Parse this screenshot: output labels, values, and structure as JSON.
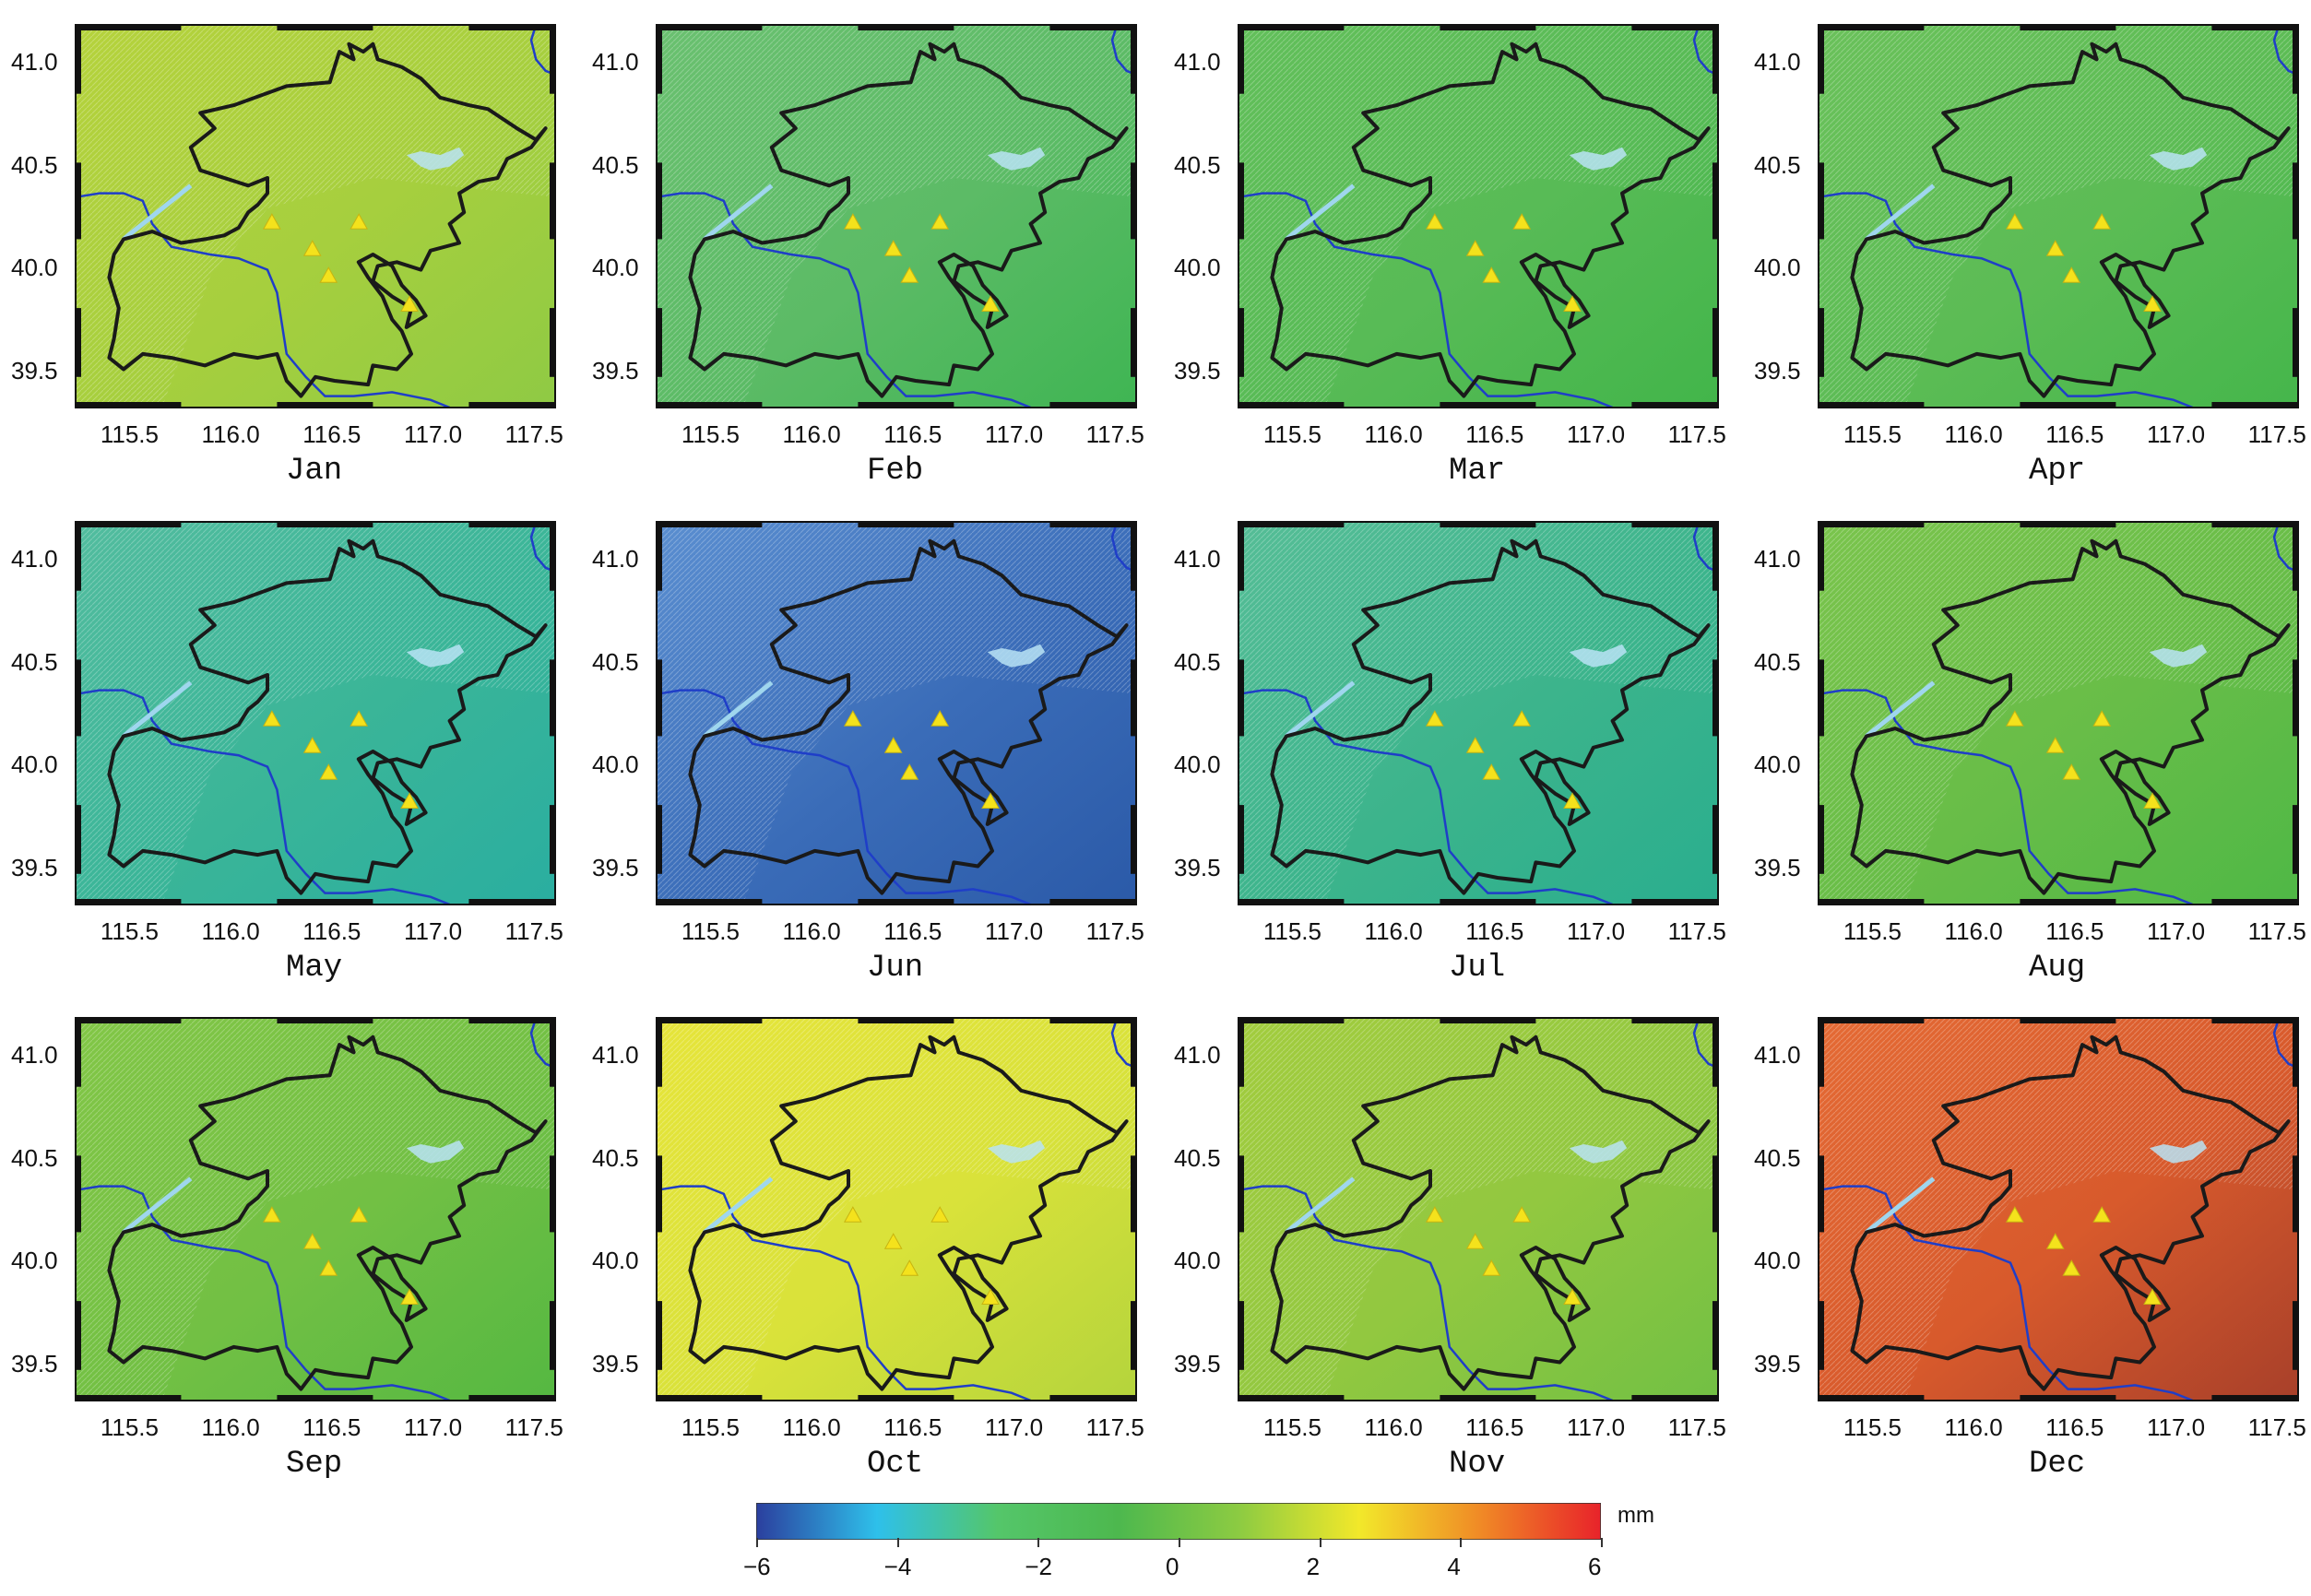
{
  "panels": [
    {
      "month": "Jan",
      "bg": "#a6cf3e",
      "grad": [
        "#b5d23c",
        "#8fca44"
      ]
    },
    {
      "month": "Feb",
      "bg": "#5cbb66",
      "grad": [
        "#6ac070",
        "#3fb553"
      ]
    },
    {
      "month": "Mar",
      "bg": "#58bb56",
      "grad": [
        "#62bf5a",
        "#42b54a"
      ]
    },
    {
      "month": "Apr",
      "bg": "#5cbc55",
      "grad": [
        "#6ac15a",
        "#45b64b"
      ]
    },
    {
      "month": "May",
      "bg": "#3ab598",
      "grad": [
        "#52bc9e",
        "#2aaea0"
      ]
    },
    {
      "month": "Jun",
      "bg": "#3a6cb8",
      "grad": [
        "#5a8ed0",
        "#2b5aa8"
      ]
    },
    {
      "month": "Jul",
      "bg": "#3cb48c",
      "grad": [
        "#55bd96",
        "#2aae8e"
      ]
    },
    {
      "month": "Aug",
      "bg": "#68bd48",
      "grad": [
        "#7ac44c",
        "#4fb846"
      ]
    },
    {
      "month": "Sep",
      "bg": "#72c044",
      "grad": [
        "#82c646",
        "#55b842"
      ]
    },
    {
      "month": "Oct",
      "bg": "#d9e23a",
      "grad": [
        "#e6e43a",
        "#b4d43c"
      ]
    },
    {
      "month": "Nov",
      "bg": "#92c840",
      "grad": [
        "#a2cc3e",
        "#72c044"
      ]
    },
    {
      "month": "Dec",
      "bg": "#d85a2c",
      "grad": [
        "#e46a34",
        "#a8402a"
      ]
    }
  ],
  "axis": {
    "x_ticks": [
      "115.5",
      "116.0",
      "116.5",
      "117.0",
      "117.5"
    ],
    "y_ticks": [
      "41.0",
      "40.5",
      "40.0",
      "39.5"
    ],
    "x_range": [
      115.25,
      117.62
    ],
    "y_range": [
      39.32,
      41.18
    ]
  },
  "stations": [
    {
      "lon": 116.22,
      "lat": 40.22
    },
    {
      "lon": 116.65,
      "lat": 40.22
    },
    {
      "lon": 116.42,
      "lat": 40.09
    },
    {
      "lon": 116.5,
      "lat": 39.96
    },
    {
      "lon": 116.9,
      "lat": 39.82
    }
  ],
  "colorbar": {
    "ticks": [
      "−6",
      "−4",
      "−2",
      "0",
      "2",
      "4",
      "6"
    ],
    "unit": "mm",
    "colors": [
      "#2b3f9e",
      "#2ec0ea",
      "#54c66a",
      "#4db84e",
      "#8ccb42",
      "#f2e82a",
      "#f08a26",
      "#e8232a"
    ]
  },
  "colors": {
    "boundary": "#1a1a1a",
    "river": "#1f3ec8",
    "reservoir": "#b8e3f5",
    "station": "#f4e21c",
    "frame": "#111111"
  }
}
